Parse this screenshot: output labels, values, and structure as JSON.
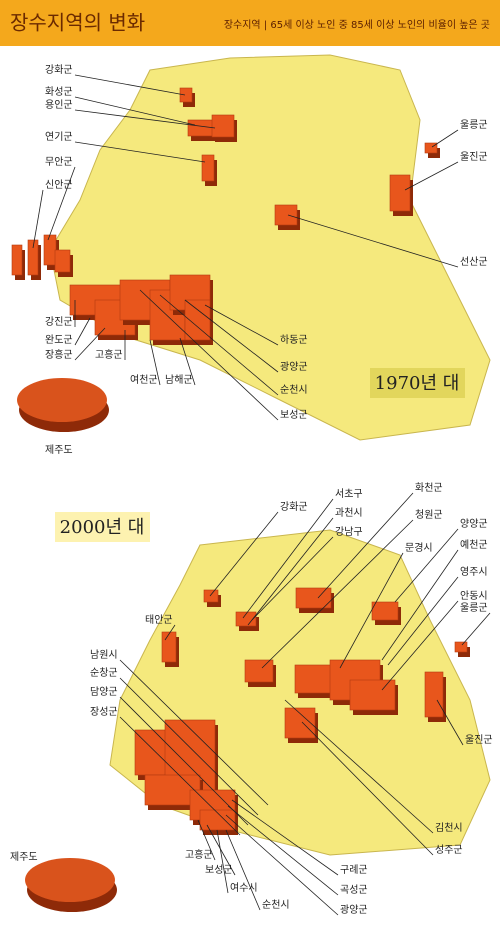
{
  "header": {
    "title": "장수지역의 변화",
    "subtitle": "장수지역 | 65세 이상 노인 중 85세 이상 노인의 비율이 높은 곳"
  },
  "maps": [
    {
      "year": "1970년 대",
      "labels": [
        "강화군",
        "화성군",
        "용인군",
        "연기군",
        "무안군",
        "신안군",
        "울릉군",
        "울진군",
        "선산군",
        "강진군",
        "완도군",
        "장흥군",
        "고흥군",
        "여천군",
        "남해군",
        "하동군",
        "광양군",
        "순천시",
        "보성군",
        "제주도"
      ]
    },
    {
      "year": "2000년 대",
      "labels": [
        "강화군",
        "서초구",
        "과천시",
        "강남구",
        "화천군",
        "청원군",
        "양양군",
        "예천군",
        "문경시",
        "영주시",
        "안동시",
        "태안군",
        "울릉군",
        "남원시",
        "순창군",
        "담양군",
        "장성군",
        "울진군",
        "김천시",
        "성주군",
        "제주도",
        "고흥군",
        "보성군",
        "여수시",
        "순천시",
        "구례군",
        "곡성군",
        "광양군"
      ]
    }
  ]
}
